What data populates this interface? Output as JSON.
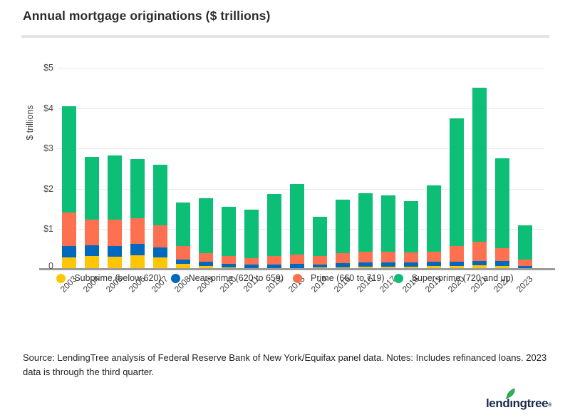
{
  "header": {
    "title": "Annual mortgage originations ($ trillions)"
  },
  "chart_data": {
    "type": "bar",
    "stacked": true,
    "title": "Annual mortgage originations ($ trillions)",
    "xlabel": "",
    "ylabel": "$ trillions",
    "ylim": [
      0,
      5
    ],
    "ytick_labels": [
      "0",
      "$1",
      "$2",
      "$3",
      "$4",
      "$5"
    ],
    "grid": true,
    "legend_position": "bottom",
    "categories": [
      "2003",
      "2004",
      "2005",
      "2006",
      "2007",
      "2008",
      "2009",
      "2010",
      "2011",
      "2012",
      "2013",
      "2014",
      "2015",
      "2016",
      "2017",
      "2018",
      "2019",
      "2020",
      "2021",
      "2022",
      "2023"
    ],
    "series": [
      {
        "name": "Subprime (below 620)",
        "color": "#FFC507",
        "values": [
          0.3,
          0.33,
          0.32,
          0.35,
          0.3,
          0.14,
          0.08,
          0.05,
          0.04,
          0.04,
          0.04,
          0.05,
          0.06,
          0.07,
          0.07,
          0.07,
          0.08,
          0.08,
          0.1,
          0.08,
          0.04
        ]
      },
      {
        "name": "Near-prime (620 to 659)",
        "color": "#0069BD",
        "values": [
          0.29,
          0.27,
          0.27,
          0.29,
          0.25,
          0.11,
          0.11,
          0.09,
          0.08,
          0.09,
          0.1,
          0.08,
          0.1,
          0.1,
          0.1,
          0.1,
          0.11,
          0.12,
          0.12,
          0.13,
          0.05
        ]
      },
      {
        "name": "Prime (660 to 719)",
        "color": "#FD7150",
        "values": [
          0.82,
          0.64,
          0.64,
          0.63,
          0.54,
          0.33,
          0.22,
          0.2,
          0.16,
          0.21,
          0.23,
          0.2,
          0.25,
          0.28,
          0.27,
          0.26,
          0.26,
          0.39,
          0.47,
          0.32,
          0.15
        ]
      },
      {
        "name": "Super-prime (720 and up)",
        "color": "#0CBE76",
        "values": [
          2.64,
          1.55,
          1.59,
          1.47,
          1.51,
          1.09,
          1.36,
          1.21,
          1.21,
          1.53,
          1.75,
          0.97,
          1.33,
          1.44,
          1.39,
          1.26,
          1.64,
          3.15,
          3.82,
          2.22,
          0.85
        ]
      }
    ]
  },
  "footer": {
    "source_note": "Source: LendingTree analysis of Federal Reserve Bank of New York/Equifax panel data. Notes: Includes refinanced loans. 2023 data is through the third quarter."
  },
  "logo": {
    "part1": "lend",
    "dotless_i": "ı",
    "part2": "ngtree",
    "mark": "®"
  }
}
